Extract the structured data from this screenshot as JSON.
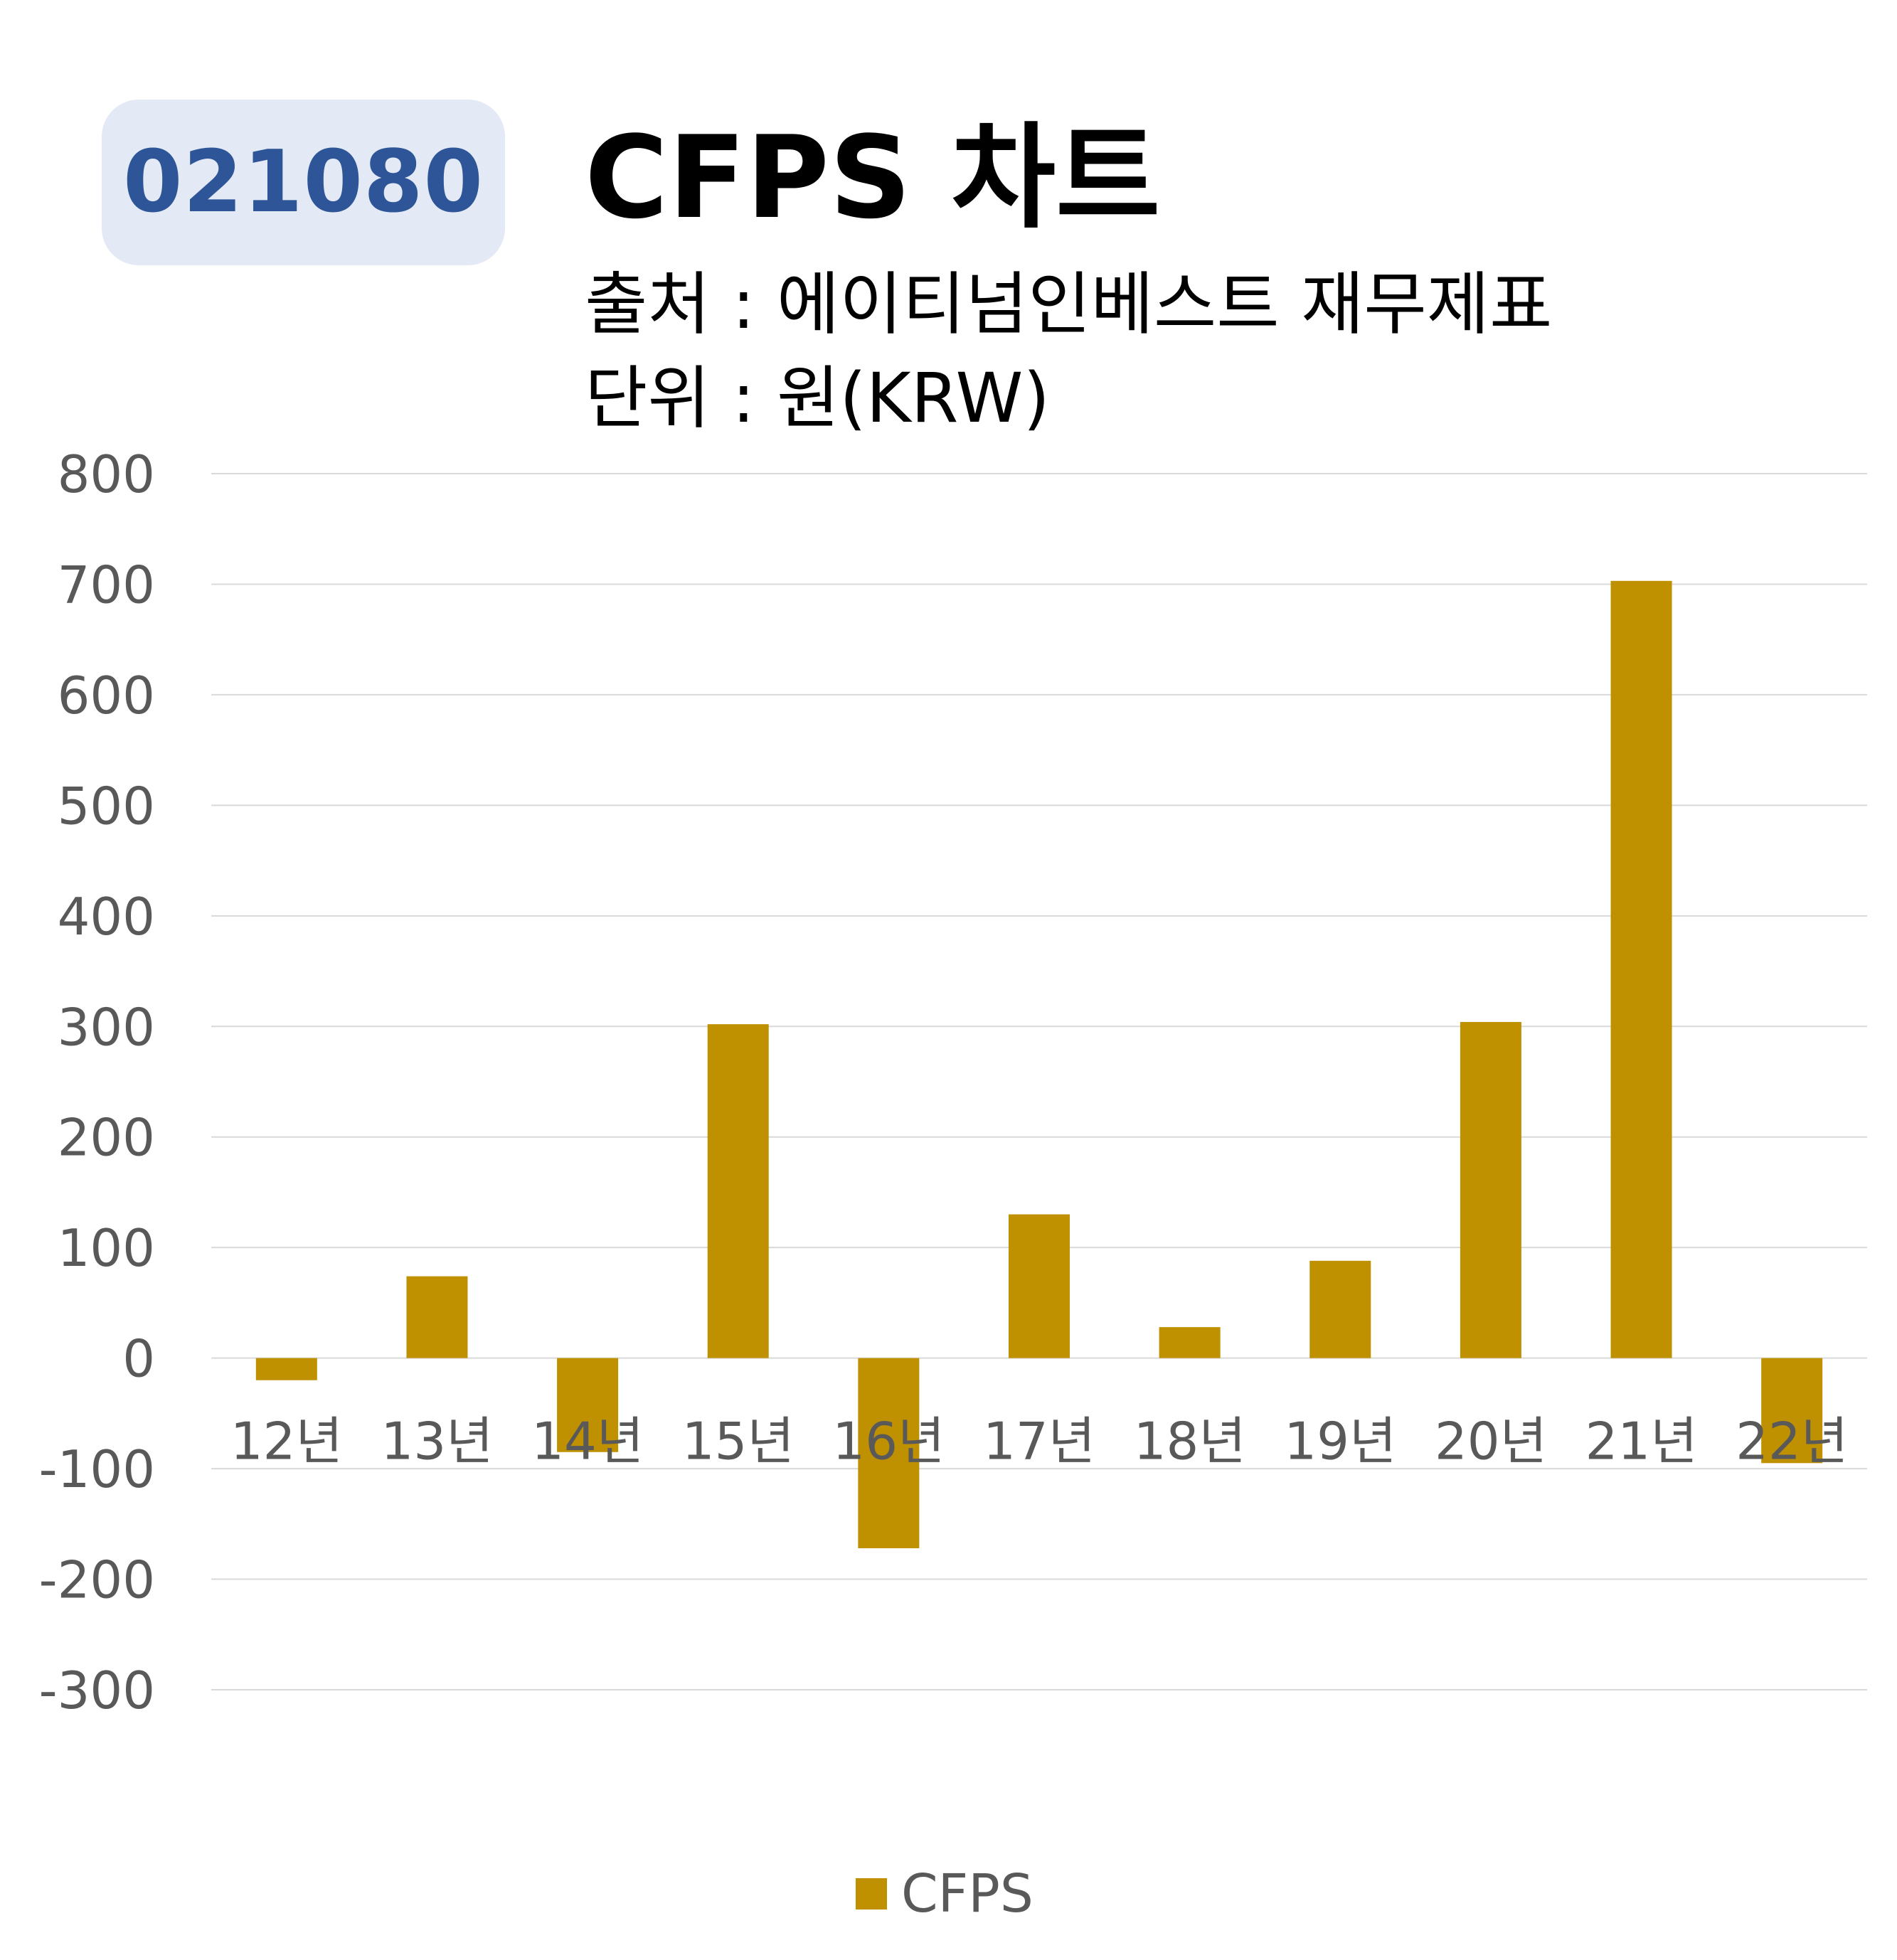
{
  "badge": {
    "code": "021080"
  },
  "header": {
    "title": "CFPS 차트",
    "source": "출처 : 에이티넘인베스트 재무제표",
    "unit": "단위 : 원(KRW)"
  },
  "colors": {
    "bar": "#bf9000",
    "badge_bg": "#e3e9f5",
    "badge_text": "#2d5597",
    "grid": "#d9d9d9",
    "axis_text": "#595959"
  },
  "chart_data": {
    "type": "bar",
    "categories": [
      "12년",
      "13년",
      "14년",
      "15년",
      "16년",
      "17년",
      "18년",
      "19년",
      "20년",
      "21년",
      "22년"
    ],
    "series": [
      {
        "name": "CFPS",
        "values": [
          -20,
          74,
          -85,
          302,
          -172,
          130,
          28,
          88,
          304,
          703,
          -95
        ]
      }
    ],
    "ylim": [
      -300,
      800
    ],
    "yticks": [
      800,
      700,
      600,
      500,
      400,
      300,
      200,
      100,
      0,
      -100,
      -200,
      -300
    ],
    "grid": true,
    "legend": "bottom-center"
  }
}
